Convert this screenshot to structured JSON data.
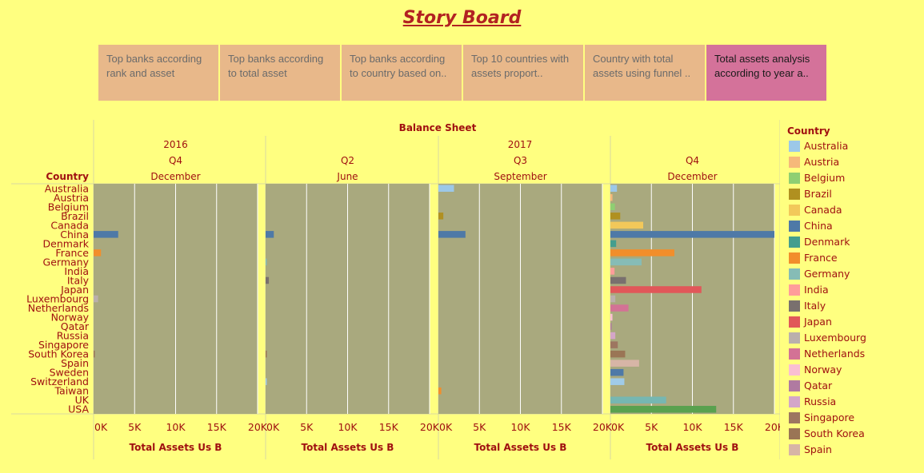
{
  "title": "Story Board",
  "tabs": [
    {
      "label": "Top banks according rank and asset",
      "active": false
    },
    {
      "label": "Top banks according to total asset",
      "active": false
    },
    {
      "label": "Top banks according to country based on..",
      "active": false
    },
    {
      "label": "Top 10 countries with assets proport..",
      "active": false
    },
    {
      "label": "Country  with total assets using funnel ..",
      "active": false
    },
    {
      "label": "Total assets analysis according to year a..",
      "active": true
    }
  ],
  "chart_data": {
    "type": "bar",
    "orientation": "horizontal",
    "title": "Balance Sheet",
    "row_header": "Country",
    "xlabel": "Total Assets Us B",
    "xlim": [
      0,
      20000
    ],
    "tick_labels": [
      "0K",
      "5K",
      "10K",
      "15K",
      "20K"
    ],
    "grid": true,
    "legend_placement": "right",
    "legend_title": "Country",
    "categories": [
      "Australia",
      "Austria",
      "Belgium",
      "Brazil",
      "Canada",
      "China",
      "Denmark",
      "France",
      "Germany",
      "India",
      "Italy",
      "Japan",
      "Luxembourg",
      "Netherlands",
      "Norway",
      "Qatar",
      "Russia",
      "Singapore",
      "South Korea",
      "Spain",
      "Sweden",
      "Switzerland",
      "Taiwan",
      "UK",
      "USA"
    ],
    "colors": {
      "Australia": "#9cc8e8",
      "Austria": "#f6b97a",
      "Belgium": "#8fcf72",
      "Brazil": "#b09020",
      "Canada": "#f2c85a",
      "China": "#4e79a7",
      "Denmark": "#449e8e",
      "France": "#f28e2b",
      "Germany": "#86bcb6",
      "India": "#ff9d9a",
      "Italy": "#79706e",
      "Japan": "#e15759",
      "Luxembourg": "#bab0ac",
      "Netherlands": "#d37295",
      "Norway": "#fabfd2",
      "Qatar": "#b07aa1",
      "Russia": "#d4a6c8",
      "Singapore": "#9d7660",
      "South Korea": "#9a7555",
      "Spain": "#d7b5a6",
      "Sweden": "#4e79a7",
      "Switzerland": "#a0cbe8",
      "Taiwan": "#f28e2b",
      "UK": "#76b7b2",
      "USA": "#59a14f"
    },
    "legend_entries": [
      "Australia",
      "Austria",
      "Belgium",
      "Brazil",
      "Canada",
      "China",
      "Denmark",
      "France",
      "Germany",
      "India",
      "Italy",
      "Japan",
      "Luxembourg",
      "Netherlands",
      "Norway",
      "Qatar",
      "Russia",
      "Singapore",
      "South Korea",
      "Spain"
    ],
    "years": [
      {
        "label": "2016",
        "panels": 1
      },
      {
        "label": "2017",
        "panels": 3
      }
    ],
    "panels": [
      {
        "quarter": "Q4",
        "month": "December",
        "values": {
          "China": 3000,
          "France": 900,
          "Luxembourg": 550,
          "South Korea": 80
        }
      },
      {
        "quarter": "Q2",
        "month": "June",
        "values": {
          "China": 1000,
          "Germany": 150,
          "Italy": 400,
          "South Korea": 120,
          "Switzerland": 100
        }
      },
      {
        "quarter": "Q3",
        "month": "September",
        "values": {
          "Australia": 1900,
          "Brazil": 600,
          "China": 3300,
          "Taiwan": 350
        }
      },
      {
        "quarter": "Q4",
        "month": "December",
        "values": {
          "Australia": 800,
          "Austria": 250,
          "Belgium": 550,
          "Brazil": 1200,
          "Canada": 4000,
          "China": 20000,
          "Denmark": 700,
          "France": 7800,
          "Germany": 3800,
          "India": 500,
          "Italy": 1900,
          "Japan": 11100,
          "Luxembourg": 600,
          "Netherlands": 2200,
          "Norway": 250,
          "Qatar": 100,
          "Russia": 600,
          "Singapore": 900,
          "South Korea": 1800,
          "Spain": 3500,
          "Sweden": 1600,
          "Switzerland": 1700,
          "UK": 6800,
          "USA": 12900
        }
      }
    ]
  }
}
